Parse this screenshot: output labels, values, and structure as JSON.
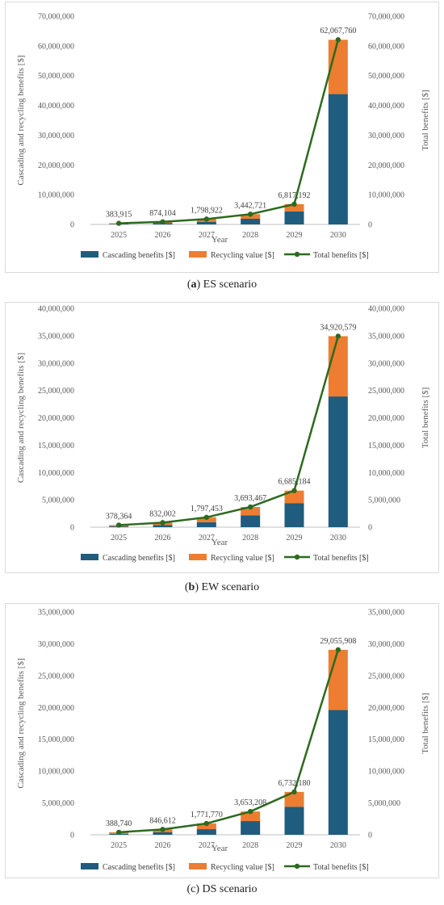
{
  "colors": {
    "cascading": "#1f5c7d",
    "recycling": "#ed7d31",
    "total": "#2d6a1f",
    "axis": "#bfbfbf"
  },
  "chart_data": [
    {
      "type": "bar",
      "caption_letter": "a",
      "caption_text": "ES scenario",
      "categories": [
        "2025",
        "2026",
        "2027",
        "2028",
        "2029",
        "2030"
      ],
      "xlabel": "Year",
      "ylabel": "Cascading and recycling benefits [$]",
      "y2label": "Total benefits [$]",
      "ylim": [
        0,
        70000000
      ],
      "yticks": [
        "0",
        "10,000,000",
        "20,000,000",
        "30,000,000",
        "40,000,000",
        "50,000,000",
        "60,000,000",
        "70,000,000"
      ],
      "series": [
        {
          "name": "Cascading benefits [$]",
          "type": "bar",
          "values": [
            150000,
            400000,
            900000,
            1900000,
            4400000,
            43800000
          ]
        },
        {
          "name": "Recycling value [$]",
          "type": "bar",
          "values": [
            233915,
            474104,
            898922,
            1542721,
            2417192,
            18267760
          ]
        },
        {
          "name": "Total benefits [$]",
          "type": "line",
          "values": [
            383915,
            874104,
            1798922,
            3442721,
            6817192,
            62067760
          ]
        }
      ],
      "data_labels": [
        "383,915",
        "874,104",
        "1,798,922",
        "3,442,721",
        "6,817,192",
        "62,067,760"
      ],
      "legend": "bottom"
    },
    {
      "type": "bar",
      "caption_letter": "b",
      "caption_text": "EW scenario",
      "categories": [
        "2025",
        "2026",
        "2027",
        "2028",
        "2029",
        "2030"
      ],
      "xlabel": "Year",
      "ylabel": "Cascading and recycling benefits [$]",
      "y2label": "Total benefits [$]",
      "ylim": [
        0,
        40000000
      ],
      "yticks": [
        "0",
        "5,000,000",
        "10,000,000",
        "15,000,000",
        "20,000,000",
        "25,000,000",
        "30,000,000",
        "35,000,000",
        "40,000,000"
      ],
      "series": [
        {
          "name": "Cascading benefits [$]",
          "type": "bar",
          "values": [
            140000,
            380000,
            900000,
            2150000,
            4400000,
            23900000
          ]
        },
        {
          "name": "Recycling value [$]",
          "type": "bar",
          "values": [
            238364,
            452002,
            897453,
            1543467,
            2285184,
            11020579
          ]
        },
        {
          "name": "Total benefits [$]",
          "type": "line",
          "values": [
            378364,
            832002,
            1797453,
            3693467,
            6685184,
            34920579
          ]
        }
      ],
      "data_labels": [
        "378,364",
        "832,002",
        "1,797,453",
        "3,693,467",
        "6,685,184",
        "34,920,579"
      ],
      "legend": "bottom"
    },
    {
      "type": "bar",
      "caption_letter": "",
      "caption_text": "(c) DS scenario",
      "categories": [
        "2025",
        "2026",
        "2027",
        "2028",
        "2029",
        "2030"
      ],
      "xlabel": "Year",
      "ylabel": "Cascading and recycling benefits [$]",
      "y2label": "Total benefits [$]",
      "ylim": [
        0,
        35000000
      ],
      "yticks": [
        "0",
        "5,000,000",
        "10,000,000",
        "15,000,000",
        "20,000,000",
        "25,000,000",
        "30,000,000",
        "35,000,000"
      ],
      "series": [
        {
          "name": "Cascading benefits [$]",
          "type": "bar",
          "values": [
            140000,
            380000,
            880000,
            2150000,
            4400000,
            19600000
          ]
        },
        {
          "name": "Recycling value [$]",
          "type": "bar",
          "values": [
            248740,
            466612,
            891770,
            1503208,
            2332180,
            9455908
          ]
        },
        {
          "name": "Total benefits [$]",
          "type": "line",
          "values": [
            388740,
            846612,
            1771770,
            3653208,
            6732180,
            29055908
          ]
        }
      ],
      "data_labels": [
        "388,740",
        "846,612",
        "1,771,770",
        "3,653,208",
        "6,732,180",
        "29,055,908"
      ],
      "legend": "bottom"
    }
  ]
}
